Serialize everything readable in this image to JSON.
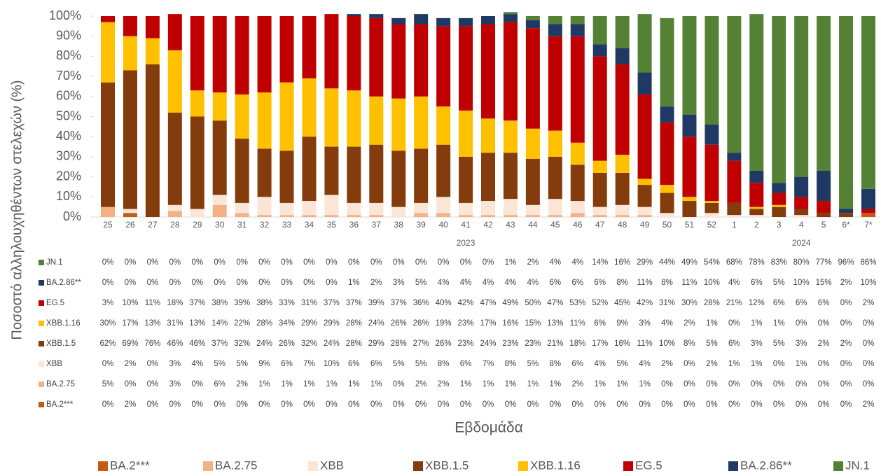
{
  "chart_data": {
    "type": "stacked_bar",
    "y_label": "Ποσοστό αλληλουχηθέντων στελεχών (%)",
    "x_label": "Εβδομάδα",
    "categories": [
      "25",
      "26",
      "27",
      "28",
      "29",
      "30",
      "31",
      "32",
      "33",
      "34",
      "35",
      "36",
      "37",
      "38",
      "39",
      "40",
      "41",
      "42",
      "43",
      "44",
      "45",
      "46",
      "47",
      "48",
      "49",
      "50",
      "51",
      "52",
      "1",
      "2",
      "3",
      "4",
      "5",
      "6*",
      "7*"
    ],
    "years": [
      null,
      null,
      null,
      null,
      null,
      null,
      null,
      null,
      null,
      null,
      null,
      null,
      null,
      null,
      null,
      null,
      "2023",
      null,
      null,
      null,
      null,
      null,
      null,
      null,
      null,
      null,
      null,
      null,
      null,
      null,
      null,
      "2024",
      null,
      null,
      null
    ],
    "ylim": [
      0,
      100
    ],
    "yticks": [
      {
        "value": 0,
        "label": "0%"
      },
      {
        "value": 10,
        "label": "10%"
      },
      {
        "value": 20,
        "label": "20%"
      },
      {
        "value": 30,
        "label": "30%"
      },
      {
        "value": 40,
        "label": "40%"
      },
      {
        "value": 50,
        "label": "50%"
      },
      {
        "value": 60,
        "label": "60%"
      },
      {
        "value": 70,
        "label": "70%"
      },
      {
        "value": 80,
        "label": "80%"
      },
      {
        "value": 90,
        "label": "90%"
      },
      {
        "value": 100,
        "label": "100%"
      }
    ],
    "series": [
      {
        "name": "BA.2***",
        "color": "#c55a11",
        "values": [
          0,
          2,
          0,
          0,
          0,
          0,
          0,
          0,
          0,
          0,
          0,
          0,
          0,
          0,
          0,
          0,
          0,
          0,
          0,
          0,
          0,
          0,
          0,
          0,
          0,
          0,
          0,
          0,
          0,
          0,
          0,
          0,
          0,
          0,
          2
        ],
        "value_labels": [
          "0%",
          "2%",
          "0%",
          "0%",
          "0%",
          "0%",
          "0%",
          "0%",
          "0%",
          "0%",
          "0%",
          "0%",
          "0%",
          "0%",
          "0%",
          "0%",
          "0%",
          "0%",
          "0%",
          "0%",
          "0%",
          "0%",
          "0%",
          "0%",
          "0%",
          "0%",
          "0%",
          "0%",
          "0%",
          "0%",
          "0%",
          "0%",
          "0%",
          "0%",
          "2%"
        ]
      },
      {
        "name": "BA.2.75",
        "color": "#f4b183",
        "values": [
          5,
          0,
          0,
          3,
          0,
          6,
          2,
          1,
          1,
          1,
          1,
          1,
          1,
          0,
          2,
          2,
          1,
          1,
          1,
          1,
          1,
          2,
          1,
          1,
          1,
          0,
          0,
          0,
          0,
          0,
          0,
          0,
          0,
          0,
          0
        ],
        "value_labels": [
          "5%",
          "0%",
          "0%",
          "3%",
          "0%",
          "6%",
          "2%",
          "1%",
          "1%",
          "1%",
          "1%",
          "1%",
          "1%",
          "0%",
          "2%",
          "2%",
          "1%",
          "1%",
          "1%",
          "1%",
          "1%",
          "2%",
          "1%",
          "1%",
          "1%",
          "0%",
          "0%",
          "0%",
          "0%",
          "0%",
          "0%",
          "0%",
          "0%",
          "0%",
          "0%"
        ]
      },
      {
        "name": "XBB",
        "color": "#fbe5d6",
        "values": [
          0,
          2,
          0,
          3,
          4,
          5,
          5,
          9,
          6,
          7,
          10,
          6,
          6,
          5,
          5,
          8,
          6,
          7,
          8,
          5,
          8,
          6,
          4,
          5,
          4,
          2,
          0,
          2,
          1,
          1,
          0,
          1,
          0,
          0,
          0
        ],
        "value_labels": [
          "0%",
          "2%",
          "0%",
          "3%",
          "4%",
          "5%",
          "5%",
          "9%",
          "6%",
          "7%",
          "10%",
          "6%",
          "6%",
          "5%",
          "5%",
          "8%",
          "6%",
          "7%",
          "8%",
          "5%",
          "8%",
          "6%",
          "4%",
          "5%",
          "4%",
          "2%",
          "0%",
          "2%",
          "1%",
          "1%",
          "0%",
          "1%",
          "0%",
          "0%",
          "0%"
        ]
      },
      {
        "name": "XBB.1.5",
        "color": "#843c0c",
        "values": [
          62,
          69,
          76,
          46,
          46,
          37,
          32,
          24,
          26,
          32,
          24,
          28,
          29,
          28,
          27,
          26,
          23,
          24,
          23,
          23,
          21,
          18,
          17,
          16,
          11,
          10,
          8,
          5,
          6,
          3,
          5,
          3,
          2,
          2,
          0
        ],
        "value_labels": [
          "62%",
          "69%",
          "76%",
          "46%",
          "46%",
          "37%",
          "32%",
          "24%",
          "26%",
          "32%",
          "24%",
          "28%",
          "29%",
          "28%",
          "27%",
          "26%",
          "23%",
          "24%",
          "23%",
          "23%",
          "21%",
          "18%",
          "17%",
          "16%",
          "11%",
          "10%",
          "8%",
          "5%",
          "6%",
          "3%",
          "5%",
          "3%",
          "2%",
          "2%",
          "0%"
        ]
      },
      {
        "name": "XBB.1.16",
        "color": "#ffc000",
        "values": [
          30,
          17,
          13,
          31,
          13,
          14,
          22,
          28,
          34,
          29,
          29,
          28,
          24,
          26,
          26,
          19,
          23,
          17,
          16,
          15,
          13,
          11,
          6,
          9,
          3,
          4,
          2,
          1,
          0,
          1,
          1,
          0,
          0,
          0,
          0
        ],
        "value_labels": [
          "30%",
          "17%",
          "13%",
          "31%",
          "13%",
          "14%",
          "22%",
          "28%",
          "34%",
          "29%",
          "29%",
          "28%",
          "24%",
          "26%",
          "26%",
          "19%",
          "23%",
          "17%",
          "16%",
          "15%",
          "13%",
          "11%",
          "6%",
          "9%",
          "3%",
          "4%",
          "2%",
          "1%",
          "0%",
          "1%",
          "1%",
          "0%",
          "0%",
          "0%",
          "0%"
        ]
      },
      {
        "name": "EG.5",
        "color": "#c00000",
        "values": [
          3,
          10,
          11,
          18,
          37,
          38,
          39,
          38,
          33,
          31,
          37,
          37,
          39,
          37,
          36,
          40,
          42,
          47,
          49,
          50,
          47,
          53,
          52,
          45,
          42,
          31,
          30,
          28,
          21,
          12,
          6,
          6,
          6,
          0,
          2
        ],
        "value_labels": [
          "3%",
          "10%",
          "11%",
          "18%",
          "37%",
          "38%",
          "39%",
          "38%",
          "33%",
          "31%",
          "37%",
          "37%",
          "39%",
          "37%",
          "36%",
          "40%",
          "42%",
          "47%",
          "49%",
          "50%",
          "47%",
          "53%",
          "52%",
          "45%",
          "42%",
          "31%",
          "30%",
          "28%",
          "21%",
          "12%",
          "6%",
          "6%",
          "6%",
          "0%",
          "2%"
        ]
      },
      {
        "name": "BA.2.86**",
        "color": "#203864",
        "values": [
          0,
          0,
          0,
          0,
          0,
          0,
          0,
          0,
          0,
          0,
          0,
          1,
          2,
          3,
          5,
          4,
          4,
          4,
          4,
          4,
          6,
          6,
          6,
          8,
          11,
          8,
          11,
          10,
          4,
          6,
          5,
          10,
          15,
          2,
          10
        ],
        "value_labels": [
          "0%",
          "0%",
          "0%",
          "0%",
          "0%",
          "0%",
          "0%",
          "0%",
          "0%",
          "0%",
          "0%",
          "1%",
          "2%",
          "3%",
          "5%",
          "4%",
          "4%",
          "4%",
          "4%",
          "4%",
          "6%",
          "6%",
          "6%",
          "8%",
          "11%",
          "8%",
          "11%",
          "10%",
          "4%",
          "6%",
          "5%",
          "10%",
          "15%",
          "2%",
          "10%"
        ]
      },
      {
        "name": "JN.1",
        "color": "#548235",
        "values": [
          0,
          0,
          0,
          0,
          0,
          0,
          0,
          0,
          0,
          0,
          0,
          0,
          0,
          0,
          0,
          0,
          0,
          0,
          1,
          2,
          4,
          4,
          14,
          16,
          29,
          44,
          49,
          54,
          68,
          78,
          83,
          80,
          77,
          96,
          86
        ],
        "value_labels": [
          "0%",
          "0%",
          "0%",
          "0%",
          "0%",
          "0%",
          "0%",
          "0%",
          "0%",
          "0%",
          "0%",
          "0%",
          "0%",
          "0%",
          "0%",
          "0%",
          "0%",
          "0%",
          "1%",
          "2%",
          "4%",
          "4%",
          "14%",
          "16%",
          "29%",
          "44%",
          "49%",
          "54%",
          "68%",
          "78%",
          "83%",
          "80%",
          "77%",
          "96%",
          "86%"
        ]
      }
    ]
  }
}
